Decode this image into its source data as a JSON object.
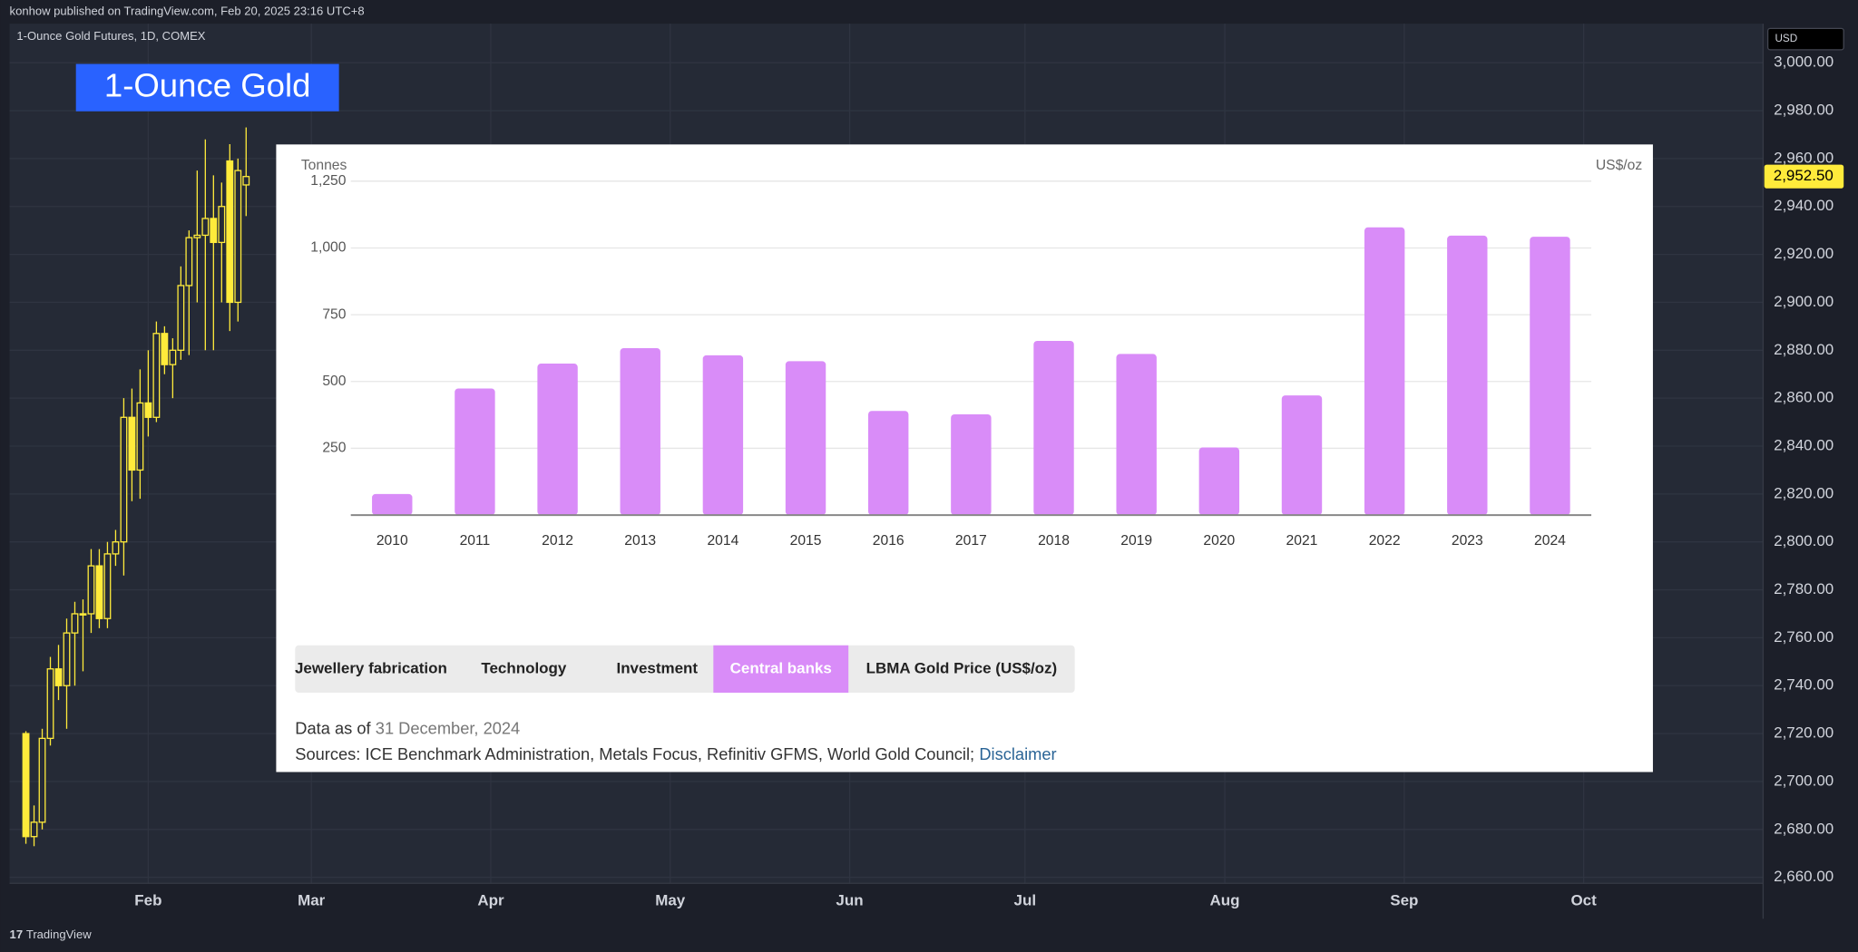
{
  "header": {
    "publisher": "konhow published on TradingView.com, Feb 20, 2025 23:16 UTC+8",
    "symbol": "1-Ounce Gold Futures, 1D, COMEX",
    "annotation": "1-Ounce Gold",
    "currency": "USD",
    "brand": "TradingView"
  },
  "chart_data": [
    {
      "type": "candlestick",
      "color": "#ffeb3b",
      "grid": true,
      "x": [
        0,
        1,
        2,
        3,
        4,
        5,
        6,
        7,
        8,
        9,
        10,
        11,
        12,
        13,
        14,
        15,
        16,
        17,
        18,
        19,
        20,
        21,
        22,
        23,
        24,
        25,
        26,
        27
      ],
      "open": [
        2720,
        2677,
        2683,
        2718,
        2747,
        2740,
        2762,
        2770,
        2770,
        2790,
        2768,
        2795,
        2800,
        2852,
        2830,
        2858,
        2852,
        2887,
        2874,
        2880,
        2907,
        2927,
        2928,
        2935,
        2925,
        2959,
        2900,
        2949
      ],
      "high": [
        2721,
        2690,
        2722,
        2752,
        2757,
        2768,
        2775,
        2776,
        2797,
        2797,
        2800,
        2805,
        2860,
        2864,
        2872,
        2880,
        2892,
        2890,
        2885,
        2915,
        2930,
        2955,
        2968,
        2953,
        2950,
        2966,
        2960,
        2973
      ],
      "low": [
        2674,
        2673,
        2680,
        2715,
        2734,
        2722,
        2740,
        2746,
        2762,
        2764,
        2764,
        2790,
        2786,
        2817,
        2818,
        2844,
        2850,
        2870,
        2860,
        2876,
        2878,
        2900,
        2880,
        2880,
        2900,
        2888,
        2892,
        2936
      ],
      "close": [
        2677,
        2683,
        2718,
        2747,
        2740,
        2762,
        2770,
        2770,
        2790,
        2768,
        2795,
        2800,
        2852,
        2830,
        2858,
        2852,
        2887,
        2874,
        2880,
        2907,
        2927,
        2928,
        2935,
        2925,
        2940,
        2900,
        2955,
        2952.5
      ],
      "xlim": [
        -2,
        213
      ],
      "xticks": [
        {
          "value": 15,
          "label": "Feb"
        },
        {
          "value": 35,
          "label": "Mar"
        },
        {
          "value": 57,
          "label": "Apr"
        },
        {
          "value": 79,
          "label": "May"
        },
        {
          "value": 101,
          "label": "Jun"
        },
        {
          "value": 122.5,
          "label": "Jul"
        },
        {
          "value": 147,
          "label": "Aug"
        },
        {
          "value": 169,
          "label": "Sep"
        },
        {
          "value": 191,
          "label": "Oct"
        }
      ],
      "ylim": [
        2657.5,
        3016.3
      ],
      "yticks": [
        {
          "value": 2660,
          "label": "2,660.00"
        },
        {
          "value": 2680,
          "label": "2,680.00"
        },
        {
          "value": 2700,
          "label": "2,700.00"
        },
        {
          "value": 2720,
          "label": "2,720.00"
        },
        {
          "value": 2740,
          "label": "2,740.00"
        },
        {
          "value": 2760,
          "label": "2,760.00"
        },
        {
          "value": 2780,
          "label": "2,780.00"
        },
        {
          "value": 2800,
          "label": "2,800.00"
        },
        {
          "value": 2820,
          "label": "2,820.00"
        },
        {
          "value": 2840,
          "label": "2,840.00"
        },
        {
          "value": 2860,
          "label": "2,860.00"
        },
        {
          "value": 2880,
          "label": "2,880.00"
        },
        {
          "value": 2900,
          "label": "2,900.00"
        },
        {
          "value": 2920,
          "label": "2,920.00"
        },
        {
          "value": 2940,
          "label": "2,940.00"
        },
        {
          "value": 2960,
          "label": "2,960.00"
        },
        {
          "value": 2980,
          "label": "2,980.00"
        },
        {
          "value": 3000,
          "label": "3,000.00"
        }
      ],
      "last_price": {
        "value": 2952.5,
        "label": "2,952.50"
      }
    },
    {
      "type": "bar",
      "y_label": "Tonnes",
      "y2_label": "US$/oz",
      "color": "#d98cf8",
      "grid": true,
      "categories": [
        "2010",
        "2011",
        "2012",
        "2013",
        "2014",
        "2015",
        "2016",
        "2017",
        "2018",
        "2019",
        "2020",
        "2021",
        "2022",
        "2023",
        "2024"
      ],
      "values": [
        79,
        474,
        567,
        625,
        598,
        576,
        390,
        377,
        652,
        603,
        253,
        448,
        1077,
        1046,
        1042
      ],
      "ylim": [
        0,
        1250
      ],
      "yticks": [
        250,
        500,
        750,
        {
          "value": 1000,
          "label": "1,000"
        },
        {
          "value": 1250,
          "label": "1,250"
        }
      ]
    }
  ],
  "tabs": {
    "items": [
      "Jewellery fabrication",
      "Technology",
      "Investment",
      "Central banks",
      "LBMA Gold Price (US$/oz)"
    ],
    "active": 3
  },
  "footer": {
    "data_as_of": "Data as of",
    "date": "31 December, 2024",
    "sources": "Sources: ICE Benchmark Administration, Metals Focus, Refinitiv GFMS, World Gold Council;",
    "disclaimer": "Disclaimer"
  }
}
